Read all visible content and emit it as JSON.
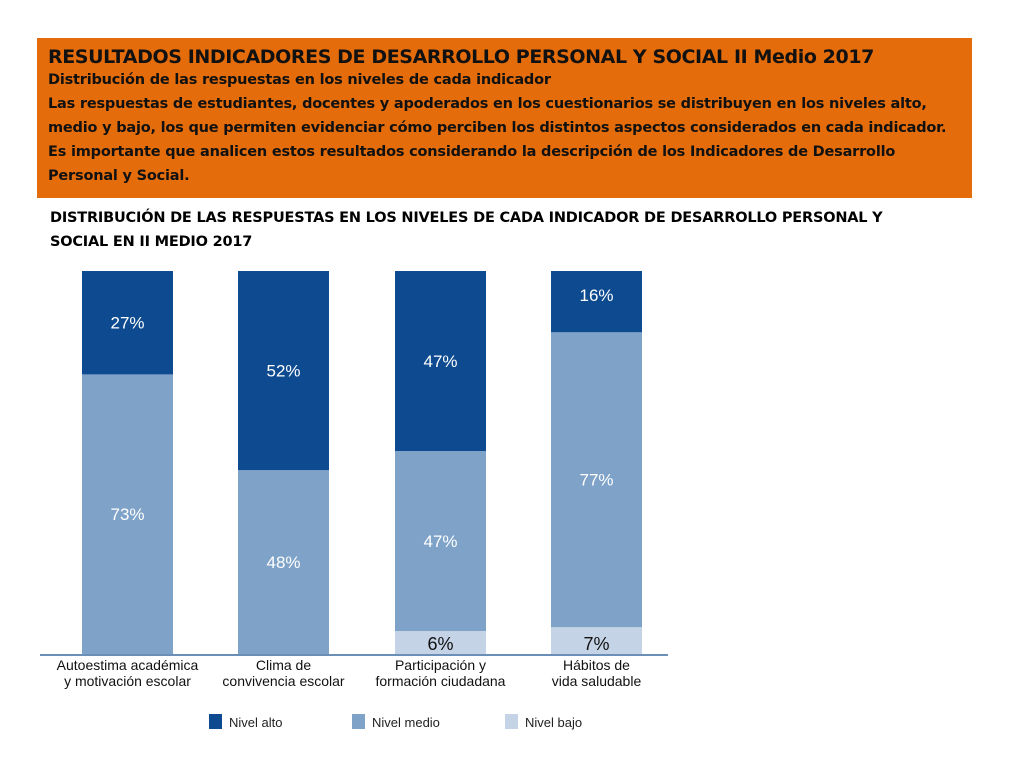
{
  "banner": {
    "title": "RESULTADOS INDICADORES DE DESARROLLO PERSONAL Y SOCIAL II Medio 2017",
    "subtitle": "Distribución de las respuestas en los niveles de cada indicador",
    "description": "Las respuestas de estudiantes, docentes y apoderados en los cuestionarios se distribuyen en los niveles alto, medio y bajo, los que permiten evidenciar cómo perciben los distintos aspectos considerados en cada indicador. Es importante que analicen estos resultados considerando la descripción de los Indicadores de Desarrollo Personal y Social."
  },
  "chart_heading": "DISTRIBUCIÓN DE LAS RESPUESTAS EN LOS NIVELES DE CADA INDICADOR DE DESARROLLO PERSONAL Y SOCIAL EN II MEDIO 2017",
  "colors": {
    "banner": "#e46c0a",
    "nivel_alto": "#0d4a8f",
    "nivel_medio": "#7fa3c8",
    "nivel_bajo": "#c5d3e6"
  },
  "chart_data": {
    "type": "bar",
    "stacked": true,
    "categories": [
      [
        "Autoestima académica",
        "y motivación escolar"
      ],
      [
        "Clima de",
        "convivencia escolar"
      ],
      [
        "Participación y",
        "formación ciudadana"
      ],
      [
        "Hábitos de",
        "vida saludable"
      ]
    ],
    "series": [
      {
        "name": "Nivel bajo",
        "values": [
          0,
          0,
          6,
          7
        ],
        "labels": [
          "",
          "",
          "6%",
          "7%"
        ]
      },
      {
        "name": "Nivel medio",
        "values": [
          73,
          48,
          47,
          77
        ],
        "labels": [
          "73%",
          "48%",
          "47%",
          "77%"
        ]
      },
      {
        "name": "Nivel alto",
        "values": [
          27,
          52,
          47,
          16
        ],
        "labels": [
          "27%",
          "52%",
          "47%",
          "16%"
        ]
      }
    ],
    "legend": [
      "Nivel alto",
      "Nivel medio",
      "Nivel bajo"
    ],
    "ylim": [
      0,
      100
    ],
    "title": "",
    "xlabel": "",
    "ylabel": ""
  }
}
